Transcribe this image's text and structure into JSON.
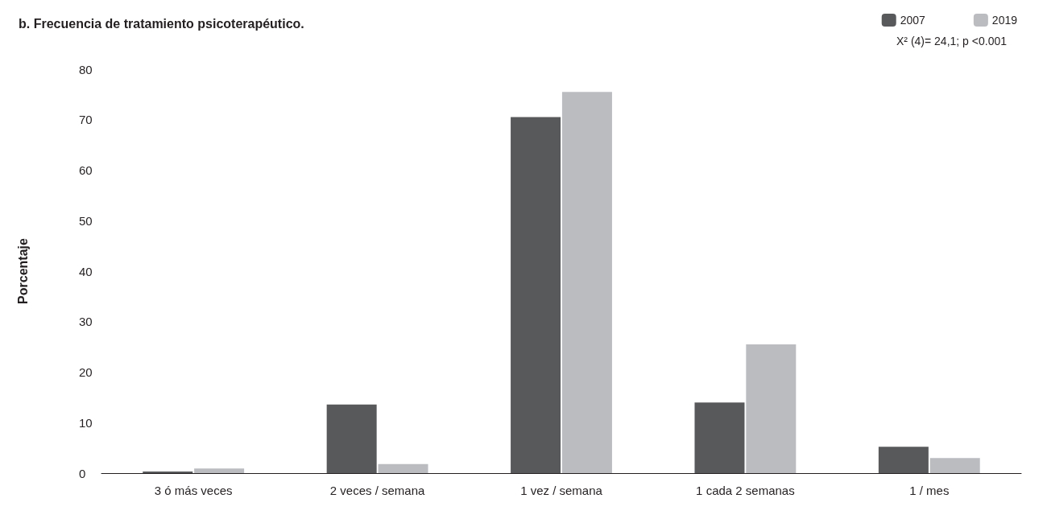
{
  "chart_data": {
    "type": "bar",
    "title": "b. Frecuencia de tratamiento psicoterapéutico.",
    "ylabel": "Porcentaje",
    "categories": [
      "3 ó más veces",
      "2 veces / semana",
      "1 vez / semana",
      "1 cada 2 semanas",
      "1 / mes"
    ],
    "series": [
      {
        "name": "2007",
        "color": "#58595b",
        "values": [
          0.3,
          13.6,
          70.5,
          14,
          5.2
        ]
      },
      {
        "name": "2019",
        "color": "#bbbcc0",
        "values": [
          0.9,
          1.8,
          75.5,
          25.5,
          3
        ]
      }
    ],
    "ylim": [
      0,
      80
    ],
    "yticks": [
      0,
      10,
      20,
      30,
      40,
      50,
      60,
      70,
      80
    ],
    "grid": false,
    "legend": "top right",
    "annotations": [
      "X² (4)= 24,1; p <0.001"
    ]
  }
}
